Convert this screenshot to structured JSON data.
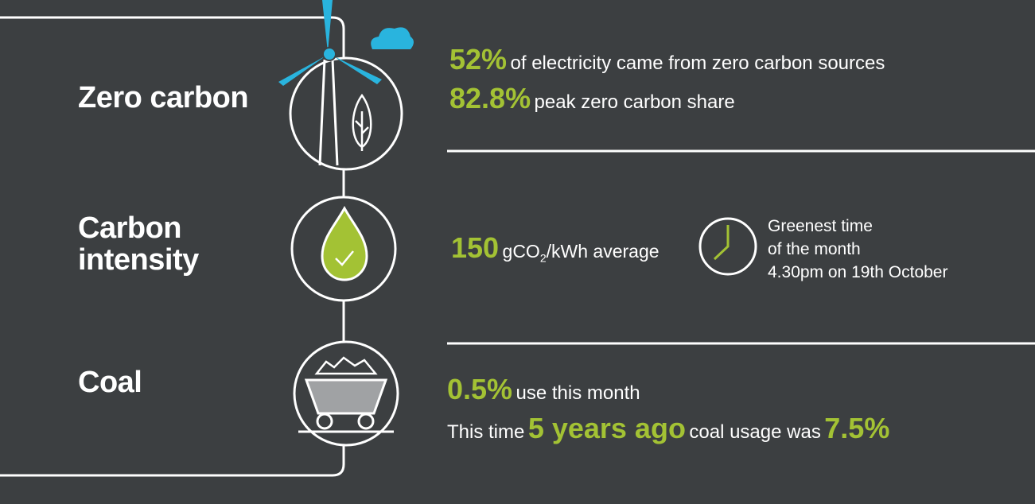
{
  "sections": [
    {
      "title": "Zero carbon",
      "stats": [
        {
          "value": "52%",
          "text": "of electricity came from zero carbon sources"
        },
        {
          "value": "82.8%",
          "text": "peak zero carbon share"
        }
      ]
    },
    {
      "title": "Carbon intensity",
      "stat": {
        "value": "150",
        "unit": "gCO",
        "subscript": "2",
        "unit_end": "/kWh average"
      },
      "greenest": [
        "Greenest time",
        "of the month",
        "4.30pm on 19th October"
      ]
    },
    {
      "title": "Coal",
      "stats": [
        {
          "value": "0.5%",
          "text": "use this month"
        }
      ],
      "comparison": {
        "prefix": "This time",
        "highlight": "5 years ago",
        "middle": "coal usage was",
        "value": "7.5%"
      }
    }
  ]
}
